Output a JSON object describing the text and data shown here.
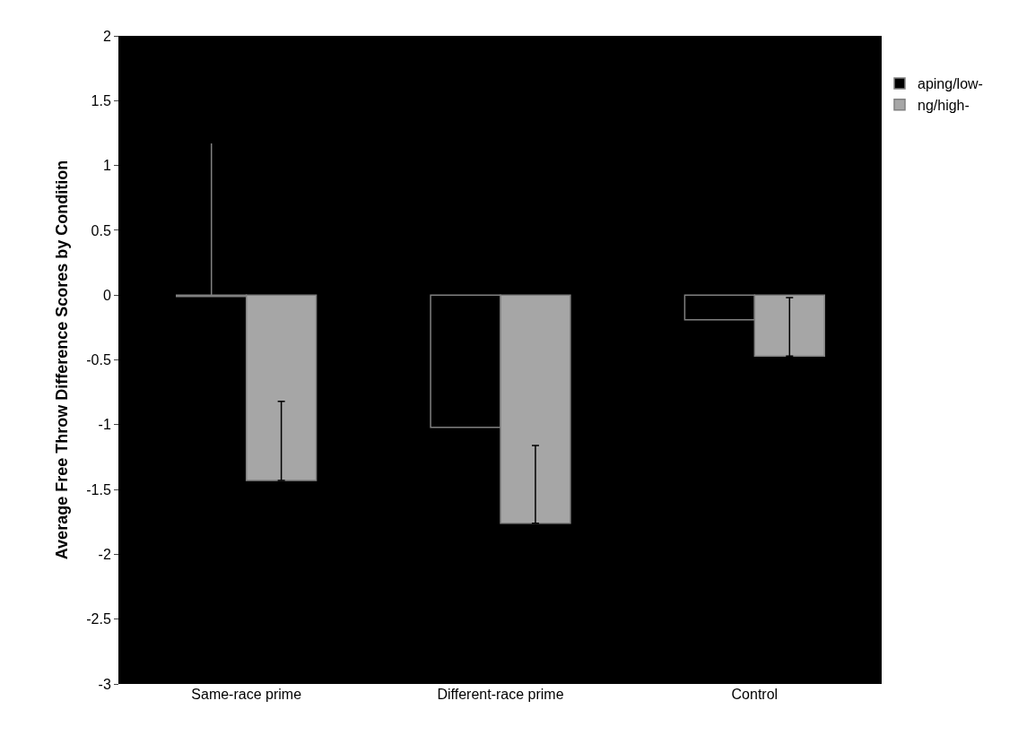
{
  "chart_data": {
    "type": "bar",
    "ylabel": "Average Free Throw Difference Scores by Condition",
    "categories": [
      "Same-race prime",
      "Different-race prime",
      "Control"
    ],
    "series": [
      {
        "name": "aping/low-",
        "color": "#000000",
        "values": [
          -0.01,
          -1.02,
          -0.19
        ],
        "errors": [
          [
            0,
            1.17
          ],
          null,
          null
        ]
      },
      {
        "name": "ng/high-",
        "color": "#a6a6a6",
        "values": [
          -1.43,
          -1.76,
          -0.47
        ],
        "errors": [
          [
            -1.43,
            -0.82
          ],
          [
            -1.76,
            -1.16
          ],
          [
            -0.47,
            -0.02
          ]
        ]
      }
    ],
    "ylim": [
      -3,
      2
    ],
    "yticks": [
      -3,
      -2.5,
      -2,
      -1.5,
      -1,
      -0.5,
      0,
      0.5,
      1,
      1.5,
      2
    ],
    "grid": false,
    "legend": "top right"
  }
}
